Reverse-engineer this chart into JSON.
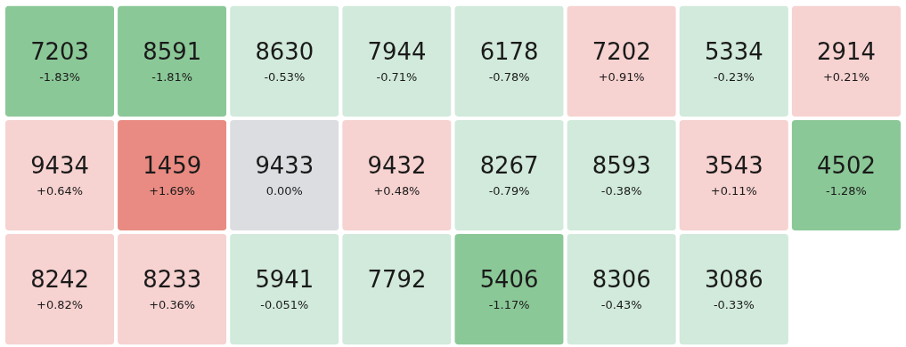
{
  "chart_data": {
    "type": "other",
    "categories": [
      "7203",
      "8591",
      "8630",
      "7944",
      "6178",
      "7202",
      "5334",
      "2914",
      "9434",
      "1459",
      "9433",
      "9432",
      "8267",
      "8593",
      "3543",
      "4502",
      "8242",
      "8233",
      "5941",
      "7792",
      "5406",
      "8306",
      "3086"
    ],
    "values": [
      -1.83,
      -1.81,
      -0.53,
      -0.71,
      -0.78,
      0.91,
      -0.23,
      0.21,
      0.64,
      1.69,
      0.0,
      0.48,
      -0.79,
      -0.38,
      0.11,
      -1.28,
      0.82,
      0.36,
      -0.051,
      null,
      -1.17,
      -0.43,
      -0.33
    ],
    "value_labels": [
      "-1.83%",
      "-1.81%",
      "-0.53%",
      "-0.71%",
      "-0.78%",
      "+0.91%",
      "-0.23%",
      "+0.21%",
      "+0.64%",
      "+1.69%",
      "0.00%",
      "+0.48%",
      "-0.79%",
      "-0.38%",
      "+0.11%",
      "-1.28%",
      "+0.82%",
      "+0.36%",
      "-0.051%",
      null,
      "-1.17%",
      "-0.43%",
      "-0.33%"
    ],
    "colors": [
      "#8bc897",
      "#8bc897",
      "#d1eadb",
      "#d1eadb",
      "#d1eadb",
      "#f6d2d0",
      "#d1eadb",
      "#f6d2d0",
      "#f6d2d0",
      "#e98b82",
      "#dcdde1",
      "#f6d2d0",
      "#d1eadb",
      "#d1eadb",
      "#f6d2d0",
      "#8bc897",
      "#f6d2d0",
      "#f6d2d0",
      "#d1eadb",
      "#d1eadb",
      "#8bc897",
      "#d1eadb",
      "#d1eadb"
    ]
  }
}
